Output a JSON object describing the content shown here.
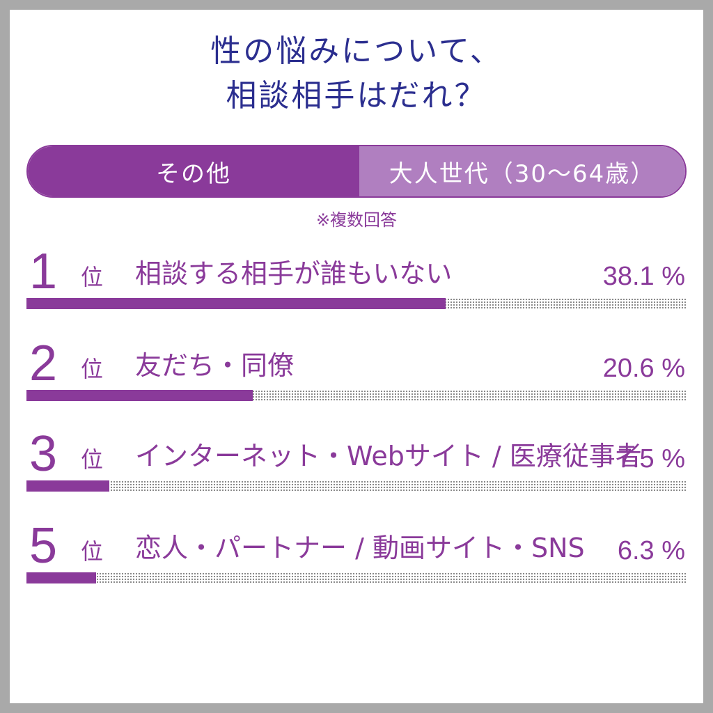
{
  "title": {
    "line1": "性の悩みについて、",
    "line2": "相談相手はだれ？"
  },
  "tabs": [
    {
      "label": "その他",
      "active": true
    },
    {
      "label": "大人世代（30〜64歳）",
      "active": false
    }
  ],
  "note": "※複数回答",
  "rank_suffix": "位",
  "colors": {
    "accent": "#8a3a9a",
    "accent_light": "#b07fc0",
    "title": "#2b2e8f"
  },
  "chart_data": {
    "type": "bar",
    "title": "性の悩みについて、相談相手はだれ？",
    "unit": "%",
    "xlim": [
      0,
      60
    ],
    "ranks": [
      "1",
      "2",
      "3",
      "5"
    ],
    "categories": [
      "相談する相手が誰もいない",
      "友だち・同僚",
      "インターネット・Webサイト / 医療従事者",
      "恋人・パートナー / 動画サイト・SNS"
    ],
    "values": [
      38.1,
      20.6,
      7.5,
      6.3
    ],
    "value_labels": [
      "38.1 %",
      "20.6 %",
      "7.5 %",
      "6.3 %"
    ]
  }
}
